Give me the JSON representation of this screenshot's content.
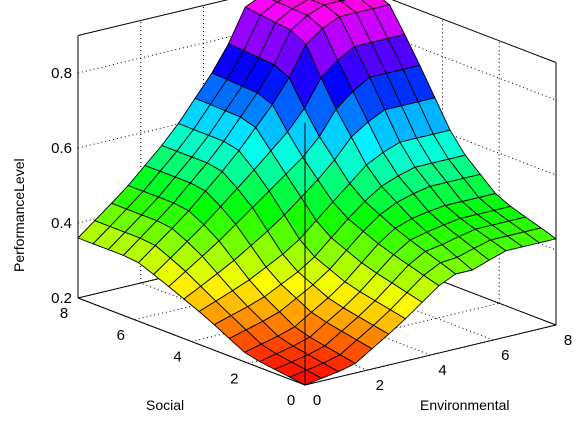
{
  "chart_data": {
    "type": "surface3d",
    "xlabel": "Environmental",
    "ylabel": "Social",
    "zlabel": "PerformanceLevel",
    "xlim": [
      0,
      8
    ],
    "ylim": [
      0,
      8
    ],
    "zlim": [
      0.2,
      0.9
    ],
    "x_ticks": [
      "0",
      "2",
      "4",
      "6",
      "8"
    ],
    "y_ticks": [
      "0",
      "2",
      "4",
      "6",
      "8"
    ],
    "z_ticks": [
      "0.2",
      "0.4",
      "0.6",
      "0.8"
    ],
    "grid": true,
    "colormap": "hsv",
    "grid_size": 15,
    "surface_levels": {
      "environmental_knots": [
        0,
        1.5,
        3,
        4.6,
        5.4,
        6.3,
        8
      ],
      "social_knots": [
        0,
        2,
        3.5,
        5,
        6,
        8
      ],
      "performance_level": [
        [
          0.2,
          0.22,
          0.3,
          0.4,
          0.4,
          0.43,
          0.43
        ],
        [
          0.22,
          0.25,
          0.33,
          0.45,
          0.47,
          0.48,
          0.48
        ],
        [
          0.28,
          0.32,
          0.38,
          0.5,
          0.55,
          0.58,
          0.58
        ],
        [
          0.33,
          0.42,
          0.52,
          0.62,
          0.72,
          0.78,
          0.78
        ],
        [
          0.36,
          0.46,
          0.58,
          0.74,
          0.86,
          0.9,
          0.9
        ],
        [
          0.36,
          0.46,
          0.58,
          0.75,
          0.88,
          0.9,
          0.9
        ]
      ]
    }
  }
}
